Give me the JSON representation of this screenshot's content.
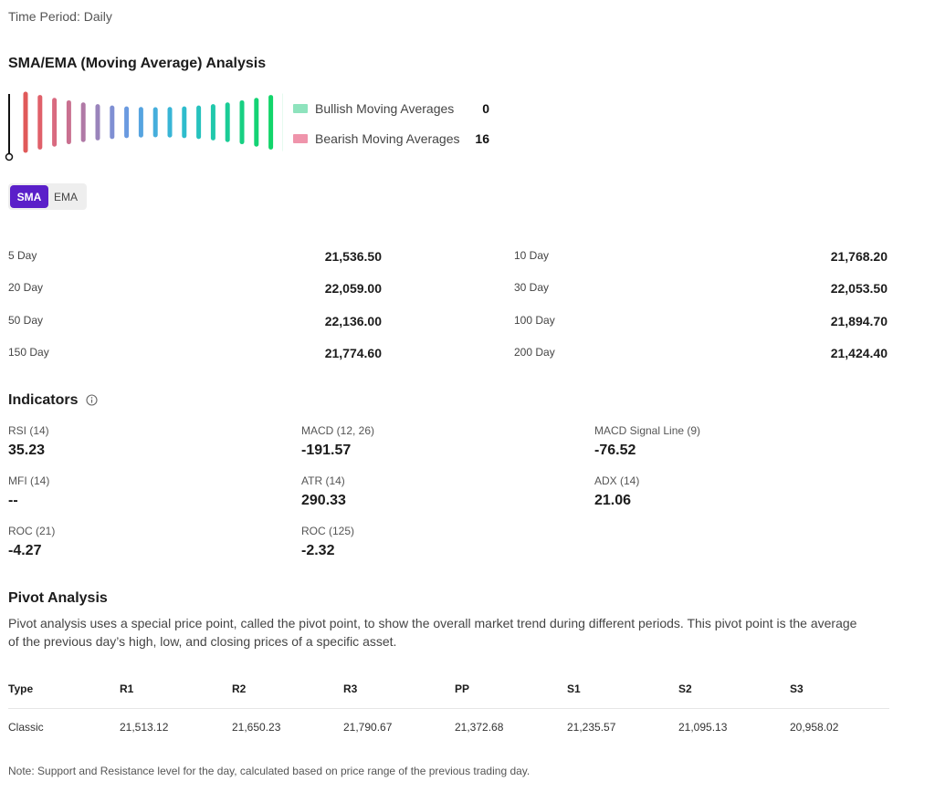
{
  "time_period": "Time Period: Daily",
  "sma_section": {
    "title": "SMA/EMA (Moving Average) Analysis",
    "gauge": {
      "bar_count": 19,
      "colors": [
        "#e05a5a",
        "#e0606a",
        "#d96a80",
        "#c97090",
        "#b079a6",
        "#9a84bb",
        "#7f8fd3",
        "#6a9ae0",
        "#56a4e0",
        "#45aedc",
        "#38b5d6",
        "#2ebccc",
        "#27c2be",
        "#20c8ab",
        "#1acc96",
        "#17d082",
        "#14d374",
        "#12d56a",
        "#10d763"
      ],
      "needle_value": 0
    },
    "legend": {
      "bullish_label": "Bullish Moving Averages",
      "bullish_count": "0",
      "bullish_color": "#8ee3bd",
      "bearish_label": "Bearish Moving Averages",
      "bearish_count": "16",
      "bearish_color": "#ef94ab"
    },
    "toggle": {
      "sma": "SMA",
      "ema": "EMA",
      "active": "SMA"
    },
    "rows": [
      {
        "left_label": "5 Day",
        "left_value": "21,536.50",
        "right_label": "10 Day",
        "right_value": "21,768.20"
      },
      {
        "left_label": "20 Day",
        "left_value": "22,059.00",
        "right_label": "30 Day",
        "right_value": "22,053.50"
      },
      {
        "left_label": "50 Day",
        "left_value": "22,136.00",
        "right_label": "100 Day",
        "right_value": "21,894.70"
      },
      {
        "left_label": "150 Day",
        "left_value": "21,774.60",
        "right_label": "200 Day",
        "right_value": "21,424.40"
      }
    ]
  },
  "indicators": {
    "title": "Indicators",
    "items": [
      {
        "label": "RSI (14)",
        "value": "35.23"
      },
      {
        "label": "MACD (12, 26)",
        "value": "-191.57"
      },
      {
        "label": "MACD Signal Line (9)",
        "value": "-76.52"
      },
      {
        "label": "MFI (14)",
        "value": "--"
      },
      {
        "label": "ATR (14)",
        "value": "290.33"
      },
      {
        "label": "ADX (14)",
        "value": "21.06"
      },
      {
        "label": "ROC (21)",
        "value": "-4.27"
      },
      {
        "label": "ROC (125)",
        "value": "-2.32"
      }
    ]
  },
  "pivot": {
    "title": "Pivot Analysis",
    "description": "Pivot analysis uses a special price point, called the pivot point, to show the overall market trend during different periods. This pivot point is the average of the previous day’s high, low, and closing prices of a specific asset.",
    "headers": [
      "Type",
      "R1",
      "R2",
      "R3",
      "PP",
      "S1",
      "S2",
      "S3"
    ],
    "rows": [
      [
        "Classic",
        "21,513.12",
        "21,650.23",
        "21,790.67",
        "21,372.68",
        "21,235.57",
        "21,095.13",
        "20,958.02"
      ]
    ],
    "note": "Note: Support and Resistance level for the day, calculated based on price range of the previous trading day."
  }
}
